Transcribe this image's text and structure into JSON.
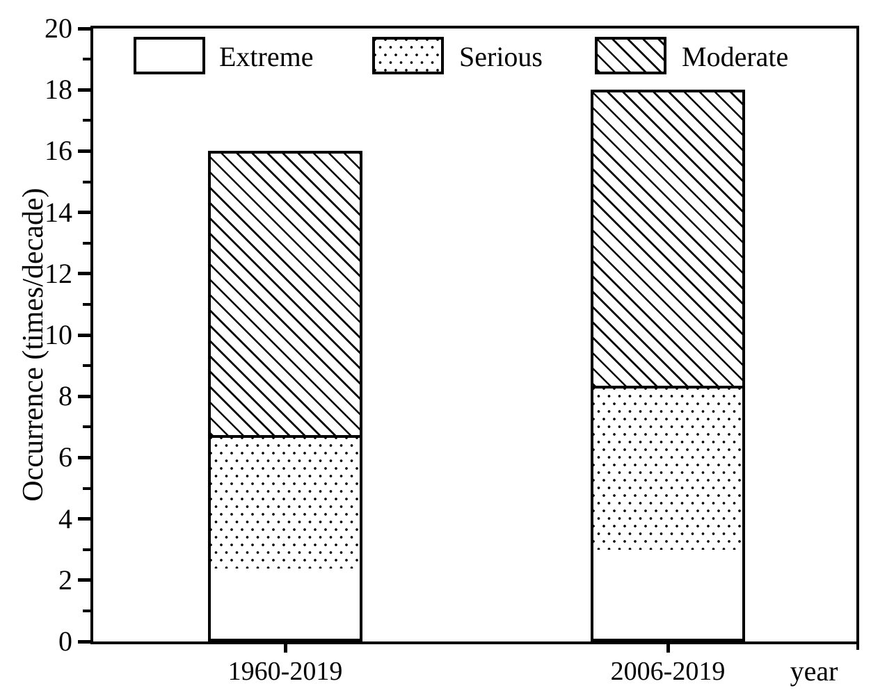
{
  "chart_data": {
    "type": "bar",
    "stacked": true,
    "title": "",
    "xlabel": "year",
    "ylabel": "Occurrence (times/decade)",
    "categories": [
      "1960-2019",
      "2006-2019"
    ],
    "series": [
      {
        "name": "Extreme",
        "fill": "plain-white",
        "values": [
          2.3,
          2.9
        ]
      },
      {
        "name": "Serious",
        "fill": "dot-pattern",
        "values": [
          4.35,
          5.35
        ]
      },
      {
        "name": "Moderate",
        "fill": "diagonal-hatch",
        "values": [
          9.35,
          9.75
        ]
      }
    ],
    "stack_totals": [
      16.0,
      18.0
    ],
    "ylim": [
      0,
      20
    ],
    "ytick_major_step": 2,
    "ytick_minor_step": 1,
    "grid": false,
    "legend_position": "top-inside",
    "colors": {
      "ink": "#000000",
      "background": "#ffffff"
    }
  }
}
